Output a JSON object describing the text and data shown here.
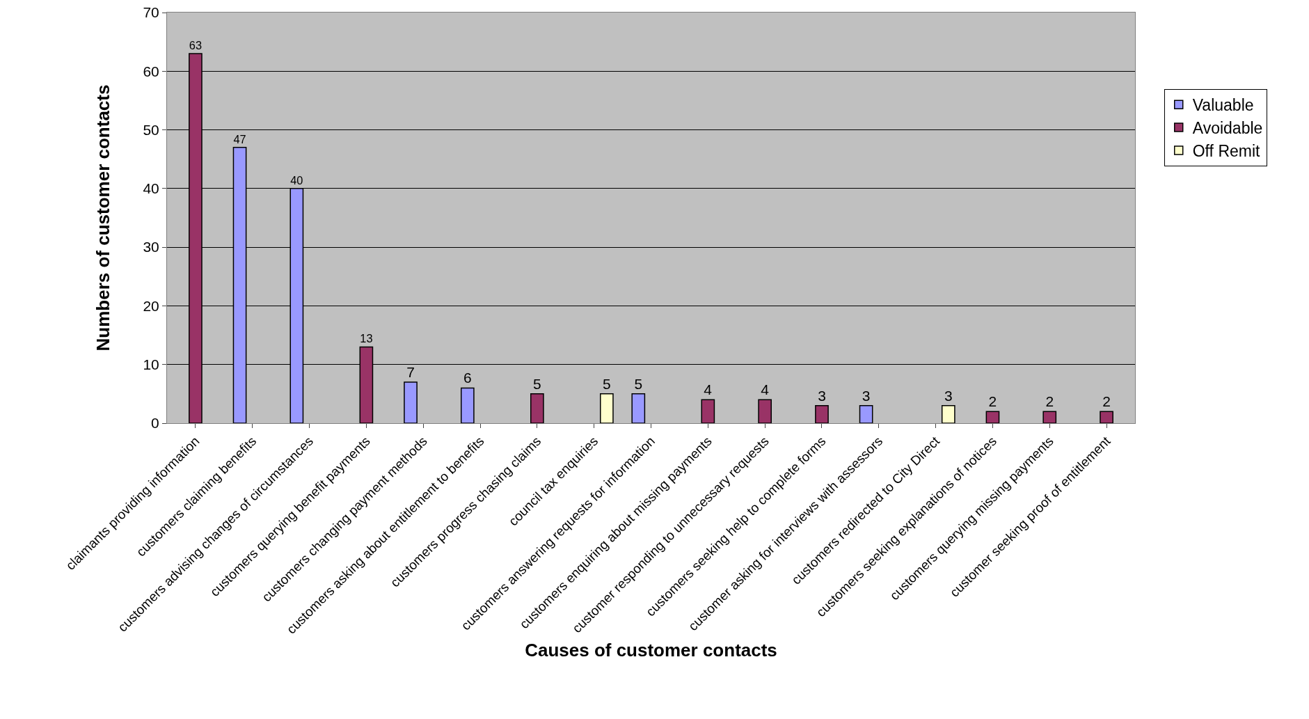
{
  "chart_data": {
    "type": "bar",
    "xlabel": "Causes of customer contacts",
    "ylabel": "Numbers of customer contacts",
    "categories": [
      "claimants providing information",
      "customers claiming benefits",
      "customers advising changes of circumstances",
      "customers querying benefit payments",
      "customers changing payment methods",
      "customers asking about entitlement to benefits",
      "customers progress chasing claims",
      "council tax enquiries",
      "customers answering requests for information",
      "customers enquiring about missing payments",
      "customer responding to unnecessary requests",
      "customers seeking help to complete forms",
      "customer asking for interviews with assessors",
      "customers redirected to City Direct",
      "customers seeking explanations of notices",
      "customers querying missing payments",
      "customer seeking proof of entitlement"
    ],
    "series": [
      {
        "name": "Valuable",
        "color": "#9999ff",
        "values": [
          null,
          47,
          40,
          null,
          7,
          6,
          null,
          null,
          5,
          null,
          null,
          null,
          3,
          null,
          null,
          null,
          null
        ]
      },
      {
        "name": "Avoidable",
        "color": "#993366",
        "values": [
          63,
          null,
          null,
          13,
          null,
          null,
          5,
          null,
          null,
          4,
          4,
          3,
          null,
          null,
          2,
          2,
          2
        ]
      },
      {
        "name": "Off Remit",
        "color": "#ffffcc",
        "values": [
          null,
          null,
          null,
          null,
          null,
          null,
          null,
          5,
          null,
          null,
          null,
          null,
          null,
          3,
          null,
          null,
          null
        ]
      }
    ],
    "ylim": [
      0,
      70
    ],
    "yticks": [
      0,
      10,
      20,
      30,
      40,
      50,
      60,
      70
    ],
    "grid": "y",
    "legend": "right",
    "data_labels": true
  }
}
